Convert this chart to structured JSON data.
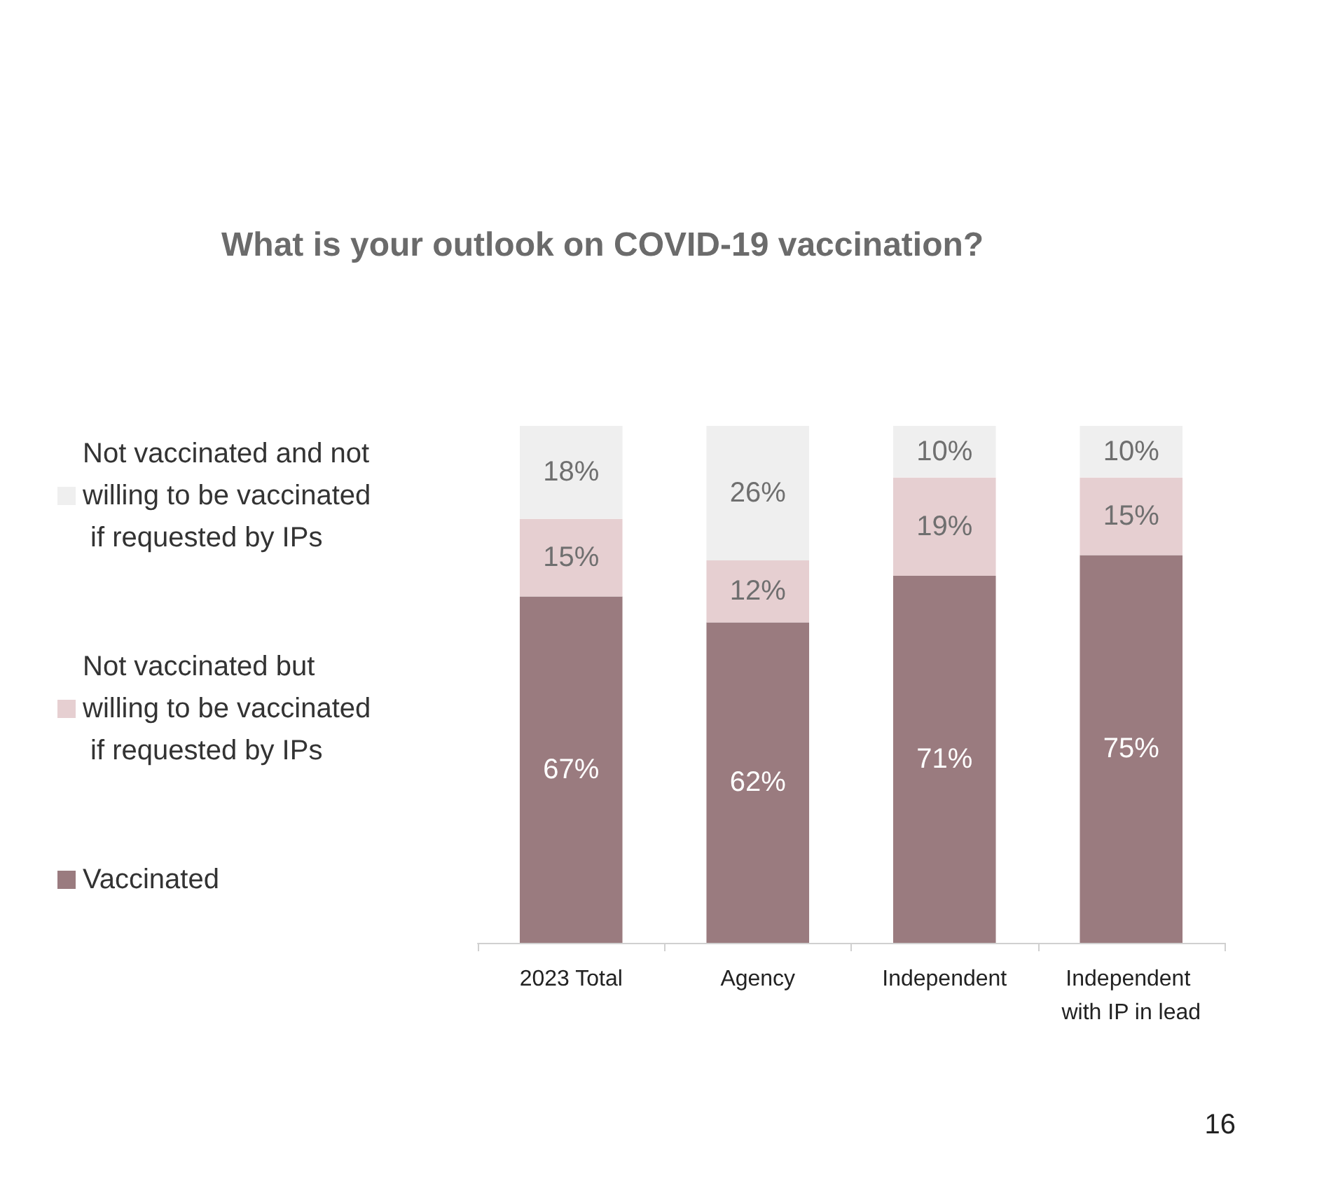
{
  "chart_data": {
    "type": "bar",
    "title": "What is your outlook on COVID-19 vaccination?",
    "categories": [
      "2023 Total",
      "Agency",
      "Independent",
      "Independent with IP in lead"
    ],
    "stacked": true,
    "ylim": [
      0,
      100
    ],
    "tick_labels": "x",
    "legend": "left",
    "series": [
      {
        "name": "Vaccinated",
        "color": "#9a7b7f",
        "values": [
          67,
          62,
          71,
          75
        ],
        "value_labels": [
          "67%",
          "62%",
          "71%",
          "75%"
        ]
      },
      {
        "name": "Not vaccinated but willing to be vaccinated if requested by IPs",
        "color": "#e6cfd1",
        "values": [
          15,
          12,
          19,
          15
        ],
        "value_labels": [
          "15%",
          "12%",
          "19%",
          "15%"
        ]
      },
      {
        "name": "Not vaccinated and not willing to be vaccinated if requested by IPs",
        "color": "#efefef",
        "values": [
          18,
          26,
          10,
          10
        ],
        "value_labels": [
          "18%",
          "26%",
          "10%",
          "10%"
        ]
      }
    ],
    "annotations": [
      "16"
    ]
  }
}
